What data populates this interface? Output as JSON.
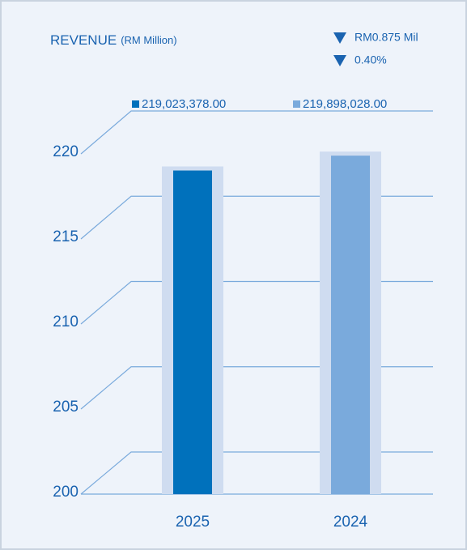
{
  "chart_data": {
    "type": "bar",
    "title": "REVENUE",
    "subtitle": "(RM Million)",
    "annotations": [
      "RM0.875 Mil",
      "0.40%"
    ],
    "categories": [
      "2025",
      "2024"
    ],
    "values": [
      219.023378,
      219.898028
    ],
    "value_labels": [
      "219,023,378.00",
      "219,898,028.00"
    ],
    "colors": [
      "#0071bc",
      "#7aaadc"
    ],
    "ylim": [
      200,
      220
    ],
    "yticks": [
      200,
      205,
      210,
      215,
      220
    ],
    "grid": true
  }
}
